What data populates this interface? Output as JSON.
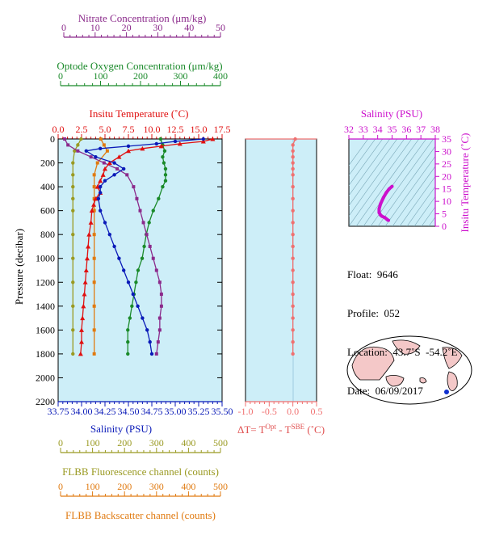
{
  "colors": {
    "nitrate": "#8b2a8b",
    "oxygen": "#1a8a2a",
    "temperature": "#e01010",
    "salinity": "#0a1ab8",
    "fluorescence": "#9a9a22",
    "backscatter": "#e07a10",
    "delta_t": "#f07070",
    "inset_salinity": "#cc10cc",
    "plot_bg": "#cdeef8",
    "land": "#f4c8c8"
  },
  "axes": {
    "nitrate": {
      "label": "Nitrate Concentration (μm/kg)",
      "ticks": [
        "0",
        "10",
        "20",
        "30",
        "40",
        "50"
      ]
    },
    "oxygen": {
      "label": "Optode Oxygen Concentration (μm/kg)",
      "ticks": [
        "0",
        "100",
        "200",
        "300",
        "400"
      ]
    },
    "temperature": {
      "label": "Insitu Temperature (˚C)",
      "ticks": [
        "0.0",
        "2.5",
        "5.0",
        "7.5",
        "10.0",
        "12.5",
        "15.0",
        "17.5"
      ]
    },
    "pressure": {
      "label": "Pressure (decibar)",
      "ticks": [
        "0",
        "200",
        "400",
        "600",
        "800",
        "1000",
        "1200",
        "1400",
        "1600",
        "1800",
        "2000",
        "2200"
      ]
    },
    "salinity": {
      "label": "Salinity (PSU)",
      "ticks": [
        "33.75",
        "34.00",
        "34.25",
        "34.50",
        "34.75",
        "35.00",
        "35.25",
        "35.50"
      ]
    },
    "delta_t": {
      "label_main": "ΔT= T",
      "sup1": "Opt",
      "label_mid": " - T",
      "sup2": "SBE",
      "label_end": " (˚C)",
      "ticks": [
        "-1.0",
        "-0.5",
        "0.0",
        "0.5"
      ]
    },
    "fluorescence": {
      "label": "FLBB Fluorescence channel (counts)",
      "ticks": [
        "0",
        "100",
        "200",
        "300",
        "400",
        "500"
      ]
    },
    "backscatter": {
      "label": "FLBB Backscatter channel (counts)",
      "ticks": [
        "0",
        "100",
        "200",
        "300",
        "400",
        "500"
      ]
    },
    "inset_salinity": {
      "label": "Salinity (PSU)",
      "ticks": [
        "32",
        "33",
        "34",
        "35",
        "36",
        "37",
        "38"
      ]
    },
    "inset_temperature": {
      "label": "Insitu Temperature (˚C)",
      "ticks": [
        "0",
        "5",
        "10",
        "15",
        "20",
        "25",
        "30",
        "35"
      ]
    }
  },
  "info": {
    "float": "Float:  9646",
    "profile": "Profile:  052",
    "location": "Location:  43.7˚S  -54.2˚E",
    "date": "Date:  06/09/2017"
  },
  "chart_data": {
    "type": "line",
    "y_axis": "pressure",
    "ylim": [
      2200,
      0
    ],
    "grid": false,
    "series": [
      {
        "key": "temperature",
        "marker": "triangle",
        "xlim": [
          0,
          17.5
        ],
        "points": [
          [
            16.5,
            0
          ],
          [
            15.5,
            20
          ],
          [
            13,
            40
          ],
          [
            11,
            60
          ],
          [
            9,
            80
          ],
          [
            7.5,
            100
          ],
          [
            6.5,
            150
          ],
          [
            5.5,
            200
          ],
          [
            5,
            250
          ],
          [
            4.8,
            300
          ],
          [
            4.5,
            350
          ],
          [
            4.2,
            400
          ],
          [
            4.5,
            450
          ],
          [
            4,
            500
          ],
          [
            3.8,
            550
          ],
          [
            3.6,
            600
          ],
          [
            3.5,
            700
          ],
          [
            3.3,
            800
          ],
          [
            3.2,
            900
          ],
          [
            3.1,
            1000
          ],
          [
            3,
            1100
          ],
          [
            2.9,
            1200
          ],
          [
            2.8,
            1300
          ],
          [
            2.7,
            1400
          ],
          [
            2.6,
            1500
          ],
          [
            2.5,
            1600
          ],
          [
            2.5,
            1700
          ],
          [
            2.4,
            1800
          ]
        ]
      },
      {
        "key": "salinity",
        "marker": "circle",
        "xlim": [
          33.75,
          35.5
        ],
        "points": [
          [
            35.3,
            0
          ],
          [
            35,
            20
          ],
          [
            34.8,
            40
          ],
          [
            34.5,
            60
          ],
          [
            34.2,
            80
          ],
          [
            34.05,
            100
          ],
          [
            34.15,
            150
          ],
          [
            34.35,
            200
          ],
          [
            34.45,
            250
          ],
          [
            34.35,
            300
          ],
          [
            34.25,
            350
          ],
          [
            34.2,
            400
          ],
          [
            34.2,
            450
          ],
          [
            34.18,
            500
          ],
          [
            34.2,
            600
          ],
          [
            34.25,
            700
          ],
          [
            34.3,
            800
          ],
          [
            34.35,
            900
          ],
          [
            34.4,
            1000
          ],
          [
            34.45,
            1100
          ],
          [
            34.5,
            1200
          ],
          [
            34.55,
            1300
          ],
          [
            34.6,
            1400
          ],
          [
            34.65,
            1500
          ],
          [
            34.7,
            1600
          ],
          [
            34.73,
            1700
          ],
          [
            34.75,
            1800
          ]
        ]
      },
      {
        "key": "nitrate",
        "marker": "square",
        "xlim": [
          0,
          50
        ],
        "points": [
          [
            2,
            0
          ],
          [
            3,
            50
          ],
          [
            6,
            100
          ],
          [
            10,
            150
          ],
          [
            14,
            200
          ],
          [
            18,
            250
          ],
          [
            21,
            300
          ],
          [
            23,
            400
          ],
          [
            24,
            500
          ],
          [
            25,
            600
          ],
          [
            26,
            700
          ],
          [
            27,
            800
          ],
          [
            28,
            900
          ],
          [
            29,
            1000
          ],
          [
            30,
            1100
          ],
          [
            31,
            1200
          ],
          [
            31.5,
            1300
          ],
          [
            31.5,
            1400
          ],
          [
            31,
            1500
          ],
          [
            31,
            1600
          ],
          [
            30.5,
            1700
          ],
          [
            30,
            1800
          ]
        ]
      },
      {
        "key": "oxygen",
        "marker": "circle",
        "xlim": [
          0,
          400
        ],
        "points": [
          [
            250,
            0
          ],
          [
            255,
            50
          ],
          [
            260,
            100
          ],
          [
            255,
            150
          ],
          [
            258,
            200
          ],
          [
            262,
            250
          ],
          [
            262,
            300
          ],
          [
            262,
            350
          ],
          [
            255,
            400
          ],
          [
            245,
            500
          ],
          [
            232,
            600
          ],
          [
            222,
            700
          ],
          [
            215,
            800
          ],
          [
            210,
            900
          ],
          [
            205,
            1000
          ],
          [
            195,
            1100
          ],
          [
            190,
            1200
          ],
          [
            185,
            1300
          ],
          [
            180,
            1400
          ],
          [
            175,
            1500
          ],
          [
            170,
            1600
          ],
          [
            170,
            1700
          ],
          [
            170,
            1800
          ]
        ]
      },
      {
        "key": "fluorescence",
        "marker": "circle",
        "xlim": [
          0,
          500
        ],
        "points": [
          [
            70,
            0
          ],
          [
            60,
            50
          ],
          [
            50,
            100
          ],
          [
            45,
            200
          ],
          [
            45,
            300
          ],
          [
            45,
            400
          ],
          [
            45,
            500
          ],
          [
            45,
            600
          ],
          [
            45,
            800
          ],
          [
            45,
            1000
          ],
          [
            45,
            1200
          ],
          [
            45,
            1400
          ],
          [
            45,
            1600
          ],
          [
            45,
            1800
          ]
        ]
      },
      {
        "key": "backscatter",
        "marker": "square",
        "xlim": [
          0,
          500
        ],
        "points": [
          [
            130,
            0
          ],
          [
            140,
            50
          ],
          [
            150,
            100
          ],
          [
            120,
            200
          ],
          [
            110,
            300
          ],
          [
            110,
            400
          ],
          [
            110,
            500
          ],
          [
            110,
            600
          ],
          [
            110,
            800
          ],
          [
            110,
            1000
          ],
          [
            110,
            1200
          ],
          [
            110,
            1400
          ],
          [
            110,
            1600
          ],
          [
            110,
            1800
          ]
        ]
      },
      {
        "key": "delta_t",
        "marker": "circle",
        "xlim": [
          -1.0,
          0.5
        ],
        "points": [
          [
            0.05,
            0
          ],
          [
            0.0,
            50
          ],
          [
            0.0,
            100
          ],
          [
            0.0,
            150
          ],
          [
            0.0,
            200
          ],
          [
            0.0,
            250
          ],
          [
            0.0,
            300
          ],
          [
            0.0,
            400
          ],
          [
            0.0,
            500
          ],
          [
            0.0,
            600
          ],
          [
            0.0,
            700
          ],
          [
            0.0,
            800
          ],
          [
            0.0,
            900
          ],
          [
            0.0,
            1000
          ],
          [
            0.0,
            1100
          ],
          [
            0.0,
            1200
          ],
          [
            0.0,
            1300
          ],
          [
            0.0,
            1400
          ],
          [
            0.0,
            1500
          ],
          [
            0.0,
            1600
          ],
          [
            0.0,
            1700
          ],
          [
            0.0,
            1800
          ]
        ]
      }
    ],
    "ts_diagram": {
      "x_axis": "salinity",
      "xlim": [
        32,
        38
      ],
      "y_axis": "temperature",
      "ylim": [
        0,
        35
      ],
      "points": [
        [
          35.0,
          16.0
        ],
        [
          34.8,
          15.0
        ],
        [
          34.6,
          13.5
        ],
        [
          34.4,
          11.5
        ],
        [
          34.2,
          9.0
        ],
        [
          34.1,
          7.0
        ],
        [
          34.1,
          5.5
        ],
        [
          34.2,
          4.5
        ],
        [
          34.3,
          4.0
        ],
        [
          34.5,
          3.5
        ],
        [
          34.6,
          3.0
        ],
        [
          34.7,
          2.5
        ],
        [
          34.75,
          2.4
        ]
      ]
    },
    "map": {
      "float_lat": -43.7,
      "float_lon": -54.2
    }
  }
}
